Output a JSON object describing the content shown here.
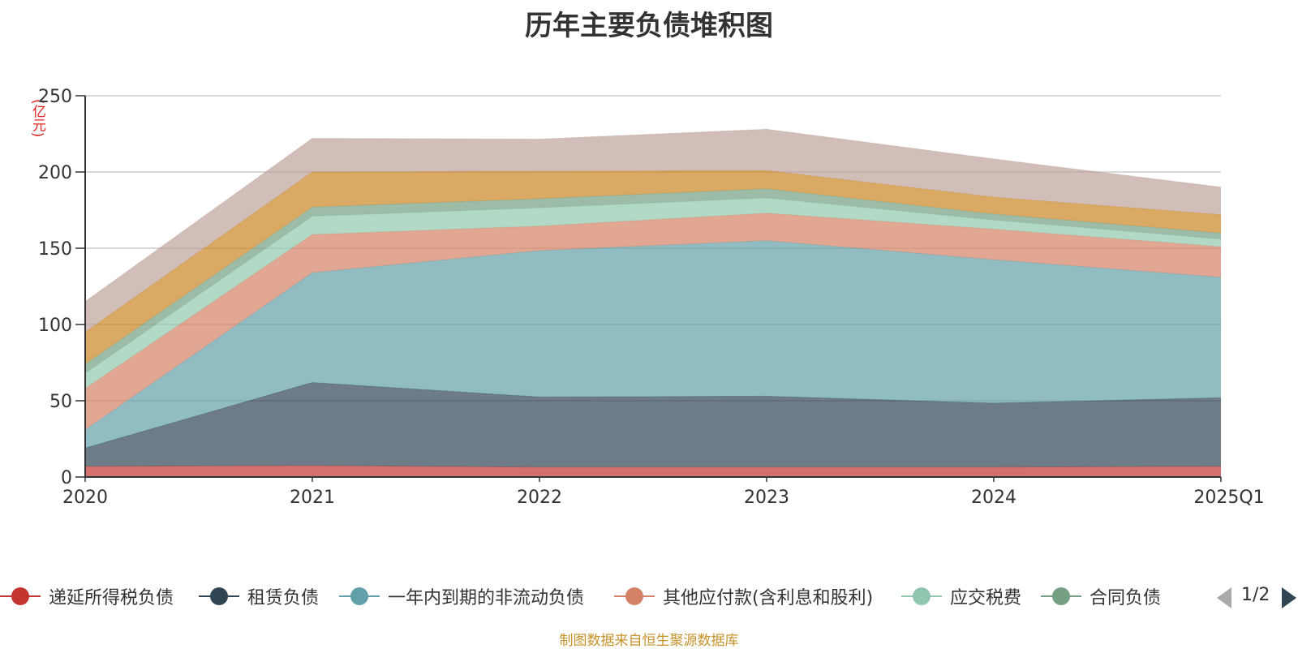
{
  "chart_data": {
    "type": "area",
    "stacked": true,
    "title": "历年主要负债堆积图",
    "unit_label": "(亿元)",
    "categories": [
      "2020",
      "2021",
      "2022",
      "2023",
      "2024",
      "2025Q1"
    ],
    "ylim": [
      0,
      250
    ],
    "yticks": [
      0,
      50,
      100,
      150,
      200,
      250
    ],
    "grid": true,
    "legend_position": "bottom",
    "series": [
      {
        "name": "递延所得税负债",
        "color": "#c23531",
        "values": [
          7,
          7.5,
          6.5,
          6.5,
          6.5,
          7
        ]
      },
      {
        "name": "租赁负债",
        "color": "#2f4554",
        "values": [
          12,
          54.5,
          46,
          46.5,
          42,
          45
        ]
      },
      {
        "name": "一年内到期的非流动负债",
        "color": "#61a0a8",
        "values": [
          12,
          72,
          96,
          102,
          94,
          79
        ]
      },
      {
        "name": "其他应付款(含利息和股利)",
        "color": "#d48265",
        "values": [
          27,
          25,
          16,
          18,
          20,
          20
        ]
      },
      {
        "name": "应交税费",
        "color": "#91c7ae",
        "values": [
          10,
          12,
          12,
          10,
          6,
          5
        ]
      },
      {
        "name": "合同负债",
        "color": "#749f83",
        "values": [
          6,
          6,
          6,
          6,
          4,
          4
        ]
      },
      {
        "name": "",
        "color": "#ca8622",
        "values": [
          21,
          23,
          18,
          12,
          11,
          12
        ]
      },
      {
        "name": "",
        "color": "#bda29a",
        "values": [
          20,
          22,
          21,
          27,
          25,
          18
        ]
      }
    ]
  },
  "legend": {
    "page_text": "1/2"
  },
  "source_text": "制图数据来自恒生聚源数据库"
}
